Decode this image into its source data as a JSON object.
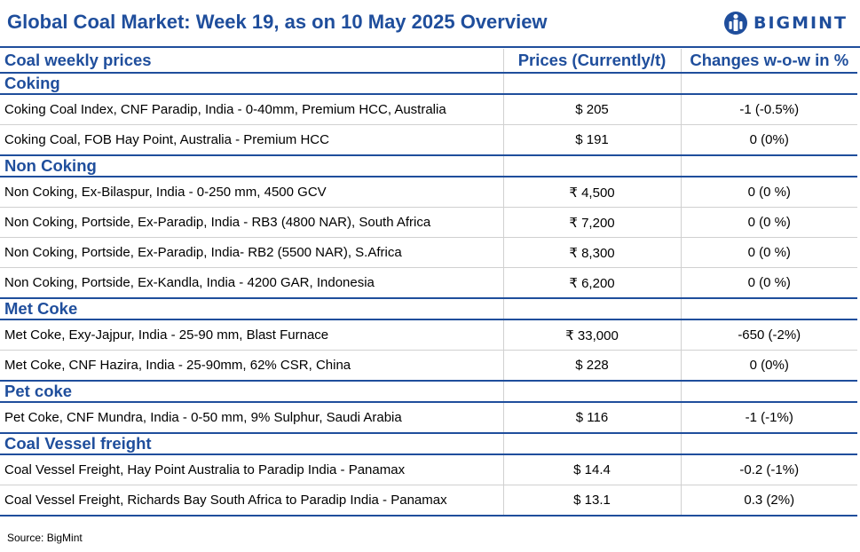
{
  "title": "Global Coal Market: Week 19, as on 10 May 2025 Overview",
  "logo": {
    "text": "BIGMINT",
    "icon": "bigmint-logo-icon",
    "color": "#1f4e9c"
  },
  "colors": {
    "accent": "#1f4e9c",
    "negative": "#e0242b",
    "positive": "#1fa34a"
  },
  "table": {
    "headers": [
      "Coal weekly prices",
      "Prices (Currently/t)",
      "Changes w-o-w in %"
    ],
    "sections": [
      {
        "name": "Coking",
        "rows": [
          {
            "label": "Coking Coal Index, CNF Paradip, India - 0-40mm, Premium HCC, Australia",
            "price": "$ 205",
            "change": "-1 (-0.5%)",
            "trend": "neg"
          },
          {
            "label": "Coking Coal, FOB Hay Point, Australia - Premium HCC",
            "price": "$ 191",
            "change": "0 (0%)",
            "trend": "neu"
          }
        ]
      },
      {
        "name": "Non Coking",
        "rows": [
          {
            "label": "Non Coking, Ex-Bilaspur, India - 0-250 mm, 4500 GCV",
            "price": "₹ 4,500",
            "change": "0 (0 %)",
            "trend": "neu"
          },
          {
            "label": "Non Coking, Portside, Ex-Paradip, India - RB3 (4800 NAR), South Africa",
            "price": "₹ 7,200",
            "change": "0 (0 %)",
            "trend": "neu"
          },
          {
            "label": "Non Coking, Portside, Ex-Paradip, India- RB2 (5500 NAR), S.Africa",
            "price": "₹ 8,300",
            "change": "0 (0 %)",
            "trend": "neu"
          },
          {
            "label": "Non Coking, Portside, Ex-Kandla, India - 4200 GAR, Indonesia",
            "price": "₹ 6,200",
            "change": "0 (0 %)",
            "trend": "neu"
          }
        ]
      },
      {
        "name": "Met Coke",
        "rows": [
          {
            "label": "Met Coke, Exy-Jajpur, India - 25-90 mm, Blast Furnace",
            "price": "₹ 33,000",
            "change": "-650 (-2%)",
            "trend": "neg"
          },
          {
            "label": "Met Coke, CNF Hazira, India - 25-90mm, 62% CSR, China",
            "price": "$ 228",
            "change": "0 (0%)",
            "trend": "neu"
          }
        ]
      },
      {
        "name": "Pet coke",
        "rows": [
          {
            "label": "Pet Coke, CNF Mundra, India - 0-50 mm, 9% Sulphur, Saudi Arabia",
            "price": "$ 116",
            "change": "-1 (-1%)",
            "trend": "neg"
          }
        ]
      },
      {
        "name": "Coal Vessel freight",
        "rows": [
          {
            "label": "Coal Vessel Freight, Hay Point Australia to Paradip India - Panamax",
            "price": "$ 14.4",
            "change": "-0.2 (-1%)",
            "trend": "neg"
          },
          {
            "label": "Coal Vessel Freight, Richards Bay South Africa to Paradip India - Panamax",
            "price": "$ 13.1",
            "change": "0.3 (2%)",
            "trend": "pos"
          }
        ]
      }
    ]
  },
  "source": "Source: BigMint"
}
